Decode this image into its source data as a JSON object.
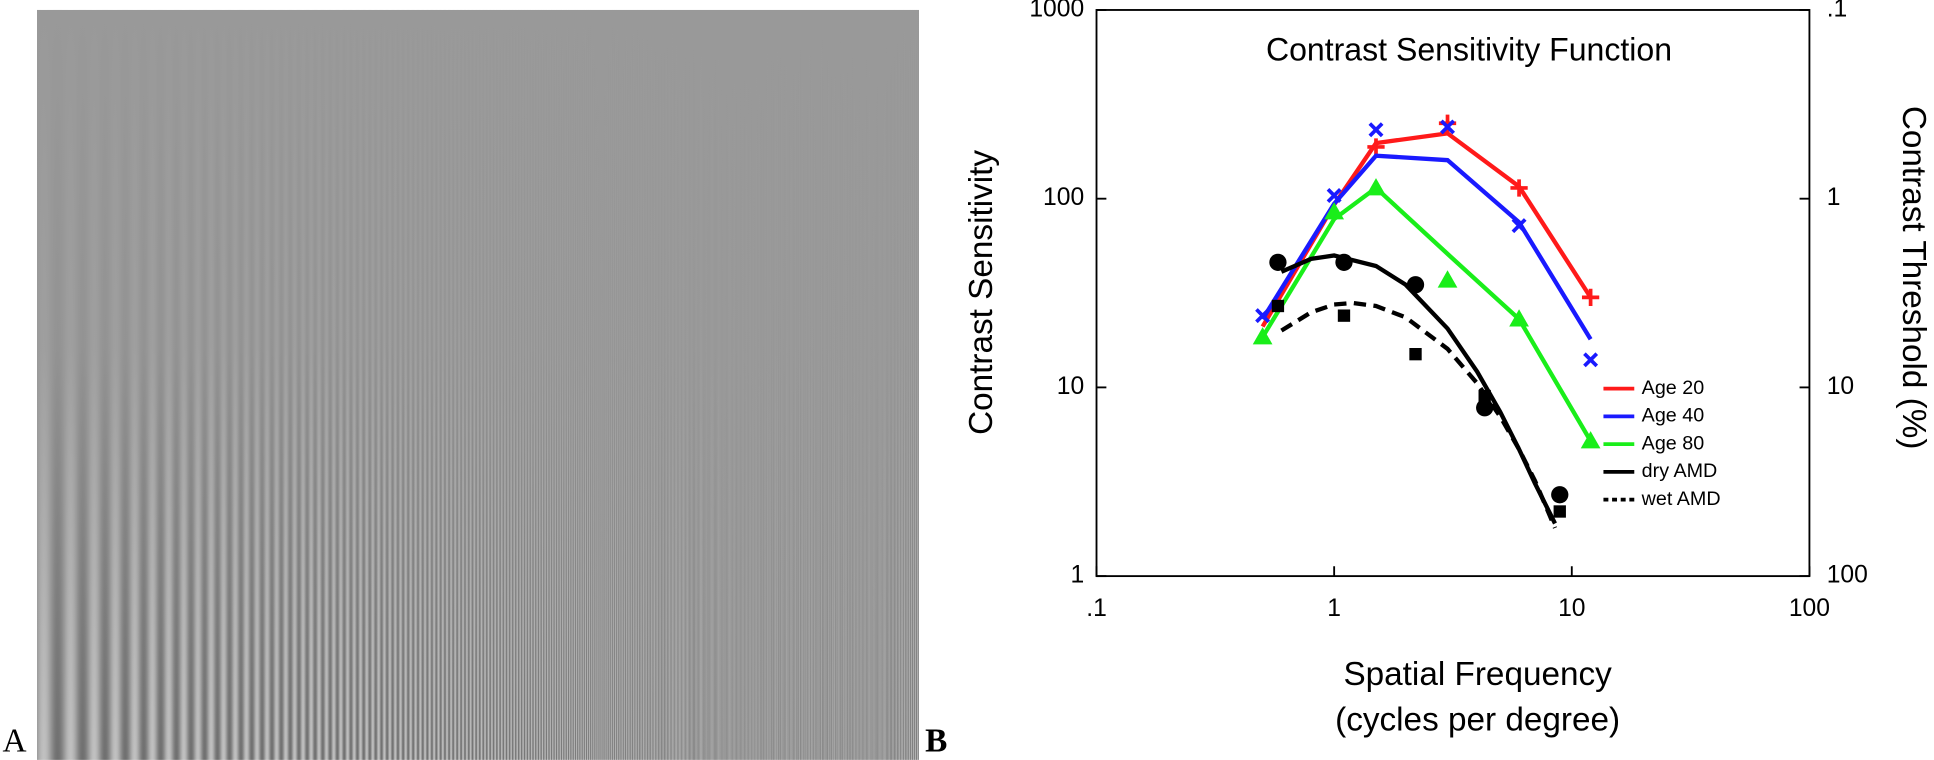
{
  "panel_labels": [
    "A",
    "B"
  ],
  "chart_data": {
    "type": "line",
    "title": "Contrast Sensitivity Function",
    "xlabel": [
      "Spatial Frequency",
      "(cycles per degree)"
    ],
    "ylabel": "Contrast Sensitivity",
    "y2label": "Contrast Threshold (%)",
    "log_x": true,
    "log_y": true,
    "xlim": [
      0.1,
      100
    ],
    "xticks": [
      {
        "value": 0.1,
        "label": ".1"
      },
      1,
      10,
      100
    ],
    "ylim": [
      1,
      1000
    ],
    "yticks": [
      1,
      10,
      100,
      1000
    ],
    "y2lim": [
      100,
      0.1
    ],
    "y2ticks": [
      {
        "value": 0.1,
        "label": ".1"
      },
      1,
      10,
      100
    ],
    "legend": "lower-right",
    "series": [
      {
        "name": "Age 20",
        "color": "#ff1a1a",
        "marker": "plus",
        "dashed": false,
        "x": [
          0.5,
          1,
          1.5,
          3,
          6,
          12
        ],
        "values": [
          21,
          93,
          197,
          222,
          116,
          30
        ],
        "marker_values": [
          null,
          null,
          188,
          251,
          114,
          30
        ]
      },
      {
        "name": "Age 40",
        "color": "#1a1aff",
        "marker": "cross",
        "dashed": false,
        "x": [
          0.5,
          1,
          1.5,
          3,
          6,
          12
        ],
        "values": [
          23,
          94,
          169,
          160,
          75,
          18
        ],
        "marker_values": [
          24,
          104,
          232,
          240,
          72,
          14
        ]
      },
      {
        "name": "Age 80",
        "color": "#1aee1a",
        "marker": "triangle",
        "dashed": false,
        "x": [
          0.5,
          1,
          1.5,
          3,
          6,
          12
        ],
        "values": [
          18.5,
          78,
          114,
          51,
          23,
          5.2
        ],
        "marker_values": [
          18.5,
          85,
          114,
          37,
          23,
          5.2
        ]
      },
      {
        "name": "dry AMD",
        "color": "#000000",
        "marker": "circle",
        "dashed": false,
        "x": [
          0.6,
          0.8,
          1,
          1.5,
          2,
          3,
          4,
          5,
          6,
          7,
          8.5
        ],
        "values": [
          41,
          48,
          50,
          44,
          35,
          20.5,
          12.1,
          7.4,
          4.7,
          3.1,
          1.9
        ],
        "marker_x": [
          0.58,
          1.1,
          2.2,
          4.3,
          8.9
        ],
        "marker_values": [
          46,
          46,
          35,
          7.8,
          2.7
        ]
      },
      {
        "name": "wet AMD",
        "color": "#000000",
        "marker": "square",
        "dashed": true,
        "x": [
          0.6,
          0.8,
          1,
          1.2,
          1.5,
          2,
          3,
          4,
          5,
          6,
          7,
          8.5
        ],
        "values": [
          20,
          25,
          27.5,
          28,
          27,
          23.5,
          16,
          10.5,
          7,
          4.7,
          3.2,
          1.8
        ],
        "marker_x": [
          0.58,
          1.1,
          2.2,
          4.3,
          8.9
        ],
        "marker_values": [
          27,
          24,
          15,
          9,
          2.2
        ]
      }
    ]
  }
}
